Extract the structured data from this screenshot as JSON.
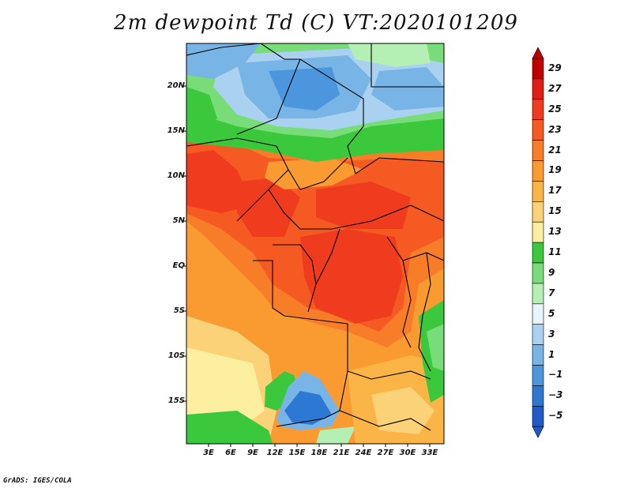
{
  "title": "2m dewpoint Td (C) VT:2020101209",
  "credit": "GrADS: IGES/COLA",
  "lat_labels": [
    "20N",
    "15N",
    "10N",
    "5N",
    "EQ",
    "5S",
    "10S",
    "15S"
  ],
  "lon_labels": [
    "3E",
    "6E",
    "9E",
    "12E",
    "15E",
    "18E",
    "21E",
    "24E",
    "27E",
    "30E",
    "33E"
  ],
  "colorbar": {
    "levels": [
      "29",
      "27",
      "25",
      "23",
      "21",
      "19",
      "17",
      "15",
      "13",
      "11",
      "9",
      "7",
      "5",
      "3",
      "1",
      "−1",
      "−3",
      "−5"
    ],
    "colors": [
      "#c00000",
      "#e21e14",
      "#f03c1e",
      "#f55a23",
      "#f87d28",
      "#fa9b32",
      "#fbb446",
      "#fcd278",
      "#fcf0a0",
      "#3cc83c",
      "#78dc78",
      "#b4f0b4",
      "#e6f5fa",
      "#aad2f0",
      "#78b4e6",
      "#4b96dc",
      "#2d78d2",
      "#1e5ac8"
    ]
  }
}
